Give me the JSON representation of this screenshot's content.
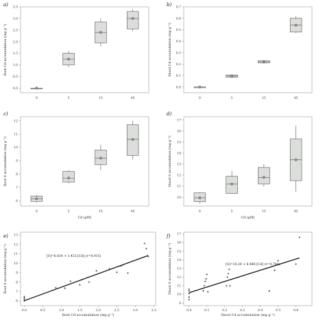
{
  "chart_data": [
    {
      "panel": "a)",
      "type": "box",
      "categories": [
        "0",
        "5",
        "15",
        "45"
      ],
      "xlabel": "",
      "ylabel": "Root Cd accumulation (mg g⁻¹)",
      "ylim": [
        -0.2,
        3.5
      ],
      "yticks": [
        "0.0",
        "0.5",
        "1.0",
        "1.5",
        "2.0",
        "2.5",
        "3.0",
        "3.5"
      ],
      "grid": false,
      "boxes": [
        {
          "min": 0.0,
          "q1": 0.0,
          "median": 0.0,
          "q3": 0.0,
          "max": 0.0,
          "mean": 0.0
        },
        {
          "min": 0.9,
          "q1": 1.0,
          "median": 1.25,
          "q3": 1.5,
          "max": 1.6,
          "mean": 1.25
        },
        {
          "min": 1.8,
          "q1": 1.95,
          "median": 2.4,
          "q3": 2.85,
          "max": 3.0,
          "mean": 2.4
        },
        {
          "min": 2.45,
          "q1": 2.55,
          "median": 3.0,
          "q3": 3.3,
          "max": 3.4,
          "mean": 3.0
        }
      ]
    },
    {
      "panel": "b)",
      "type": "box",
      "categories": [
        "0",
        "5",
        "15",
        "45"
      ],
      "xlabel": "",
      "ylabel": "Shoot Cd accumulation (mg g⁻¹)",
      "ylim": [
        -0.05,
        0.7
      ],
      "yticks": [
        "0.0",
        "0.1",
        "0.2",
        "0.3",
        "0.4",
        "0.5",
        "0.6",
        "0.7"
      ],
      "grid": false,
      "boxes": [
        {
          "min": 0.0,
          "q1": 0.0,
          "median": 0.0,
          "q3": 0.0,
          "max": 0.0,
          "mean": 0.0
        },
        {
          "min": 0.08,
          "q1": 0.085,
          "median": 0.095,
          "q3": 0.105,
          "max": 0.11,
          "mean": 0.095
        },
        {
          "min": 0.205,
          "q1": 0.21,
          "median": 0.22,
          "q3": 0.23,
          "max": 0.235,
          "mean": 0.22
        },
        {
          "min": 0.47,
          "q1": 0.48,
          "median": 0.54,
          "q3": 0.6,
          "max": 0.62,
          "mean": 0.54
        }
      ]
    },
    {
      "panel": "c)",
      "type": "box",
      "categories": [
        "0",
        "5",
        "15",
        "45"
      ],
      "xlabel": "Cd (µM)",
      "ylabel": "Root S accumulation (mg g⁻¹)",
      "ylim": [
        5.6,
        12.3
      ],
      "yticks": [
        "6",
        "7",
        "8",
        "9",
        "10",
        "11",
        "12"
      ],
      "grid": false,
      "boxes": [
        {
          "min": 5.85,
          "q1": 5.95,
          "median": 6.15,
          "q3": 6.35,
          "max": 6.45,
          "mean": 6.15
        },
        {
          "min": 7.3,
          "q1": 7.4,
          "median": 7.7,
          "q3": 8.2,
          "max": 8.3,
          "mean": 7.7
        },
        {
          "min": 8.3,
          "q1": 8.7,
          "median": 9.2,
          "q3": 9.8,
          "max": 10.2,
          "mean": 9.2
        },
        {
          "min": 9.1,
          "q1": 9.4,
          "median": 10.6,
          "q3": 11.7,
          "max": 12.0,
          "mean": 10.6
        }
      ]
    },
    {
      "panel": "d)",
      "type": "box",
      "categories": [
        "0",
        "5",
        "15",
        "45"
      ],
      "xlabel": "Cd (µM)",
      "ylabel": "Shoot S accumulation (mg g⁻¹)",
      "ylim": [
        9.2,
        17.3
      ],
      "yticks": [
        "10",
        "11",
        "12",
        "13",
        "14",
        "15",
        "16",
        "17"
      ],
      "grid": false,
      "boxes": [
        {
          "min": 9.4,
          "q1": 9.6,
          "median": 9.95,
          "q3": 10.4,
          "max": 10.45,
          "mean": 9.95
        },
        {
          "min": 10.3,
          "q1": 10.35,
          "median": 11.2,
          "q3": 11.9,
          "max": 12.4,
          "mean": 11.2
        },
        {
          "min": 10.95,
          "q1": 11.2,
          "median": 11.8,
          "q3": 12.7,
          "max": 13.0,
          "mean": 11.8
        },
        {
          "min": 10.5,
          "q1": 11.5,
          "median": 13.4,
          "q3": 15.3,
          "max": 16.5,
          "mean": 13.4
        }
      ]
    },
    {
      "panel": "e)",
      "type": "scatter",
      "xlabel": "Root Cd accumulation (mg g⁻¹)",
      "ylabel": "Root S accumulation (mg g⁻¹)",
      "xlim": [
        -0.1,
        3.55
      ],
      "ylim": [
        5.5,
        13.3
      ],
      "xticks": [
        "0.0",
        "0.5",
        "1.0",
        "1.5",
        "2.0",
        "2.5",
        "3.0",
        "3.5"
      ],
      "yticks": [
        "6",
        "7",
        "8",
        "9",
        "10",
        "11",
        "12",
        "13"
      ],
      "grid": false,
      "annotation": "[S]=6.024 + 1.433 [Cd] (r=0.915)",
      "fit": {
        "intercept": 6.024,
        "slope": 1.433
      },
      "x": [
        0.0,
        0.0,
        0.0,
        0.0,
        0.85,
        1.1,
        1.25,
        1.5,
        1.55,
        1.75,
        1.95,
        2.3,
        2.5,
        2.6,
        2.65,
        2.8,
        3.25,
        3.3,
        3.35
      ],
      "y": [
        6.0,
        6.15,
        6.3,
        6.45,
        7.4,
        7.35,
        8.1,
        7.7,
        8.25,
        8.0,
        9.2,
        9.4,
        9.05,
        9.7,
        9.8,
        8.95,
        12.1,
        11.55,
        10.7
      ]
    },
    {
      "panel": "f)",
      "type": "scatter",
      "xlabel": "Shoot Cd accumulation (mg g⁻¹)",
      "ylabel": "Shoot S accumulation (mg g⁻¹)",
      "xlim": [
        -0.03,
        0.69
      ],
      "ylim": [
        8.7,
        17.2
      ],
      "xticks": [
        "0.0",
        "0.1",
        "0.2",
        "0.3",
        "0.4",
        "0.5",
        "0.6"
      ],
      "yticks": [
        "9",
        "10",
        "11",
        "12",
        "13",
        "14",
        "15",
        "16",
        "17"
      ],
      "grid": false,
      "annotation": "[S]=10.20 + 6.486 [Cd] (r=0.784)",
      "fit": {
        "intercept": 10.2,
        "slope": 6.486
      },
      "x": [
        0.0,
        0.0,
        0.0,
        0.0,
        0.0,
        0.08,
        0.085,
        0.09,
        0.095,
        0.1,
        0.105,
        0.21,
        0.215,
        0.22,
        0.225,
        0.23,
        0.45,
        0.48,
        0.5,
        0.6,
        0.62
      ],
      "y": [
        9.4,
        9.7,
        10.1,
        10.4,
        10.6,
        10.4,
        11.0,
        11.5,
        11.8,
        12.3,
        10.3,
        11.0,
        12.0,
        12.4,
        12.9,
        11.0,
        10.4,
        12.8,
        13.9,
        13.5,
        16.6
      ]
    }
  ]
}
